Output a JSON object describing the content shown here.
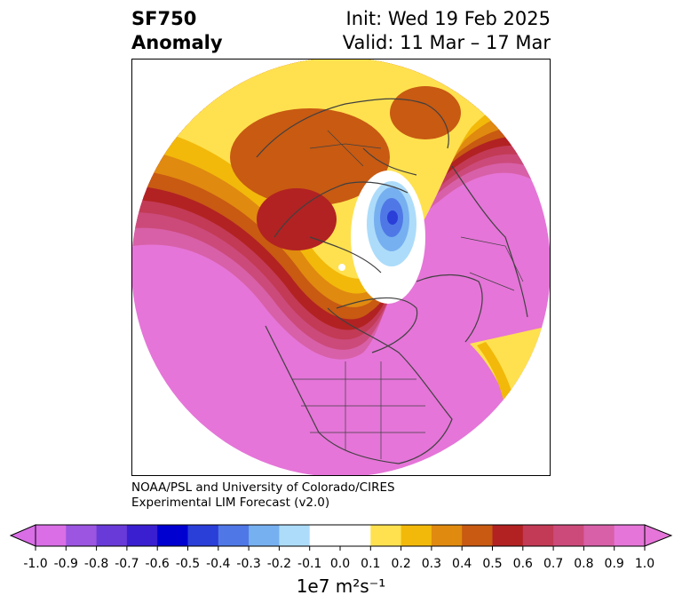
{
  "title": {
    "left_line1": "SF750",
    "left_line2": "Anomaly",
    "right_line1": "Init: Wed 19 Feb 2025",
    "right_line2": "Valid: 11 Mar – 17 Mar"
  },
  "credit": {
    "line1": "NOAA/PSL and University of Colorado/CIRES",
    "line2": "Experimental LIM Forecast (v2.0)"
  },
  "colorbar": {
    "label": "1e7 m²s⁻¹",
    "ticks": [
      "-1.0",
      "-0.9",
      "-0.8",
      "-0.7",
      "-0.6",
      "-0.5",
      "-0.4",
      "-0.3",
      "-0.2",
      "-0.1",
      "0.0",
      "0.1",
      "0.2",
      "0.3",
      "0.4",
      "0.5",
      "0.6",
      "0.7",
      "0.8",
      "0.9",
      "1.0"
    ],
    "colors": [
      "#d96ee6",
      "#9b55e0",
      "#6a3ad8",
      "#3a1fd0",
      "#0000d0",
      "#2a3ed8",
      "#4f78e6",
      "#76b0f0",
      "#addcfa",
      "#ffffff",
      "#ffffff",
      "#ffe14f",
      "#f2b90a",
      "#e08a10",
      "#c85a12",
      "#b22222",
      "#c23a55",
      "#cc4a7a",
      "#d860a8",
      "#e575d8"
    ],
    "extend_low_color": "#d96ee6",
    "extend_high_color": "#e575d8"
  }
}
